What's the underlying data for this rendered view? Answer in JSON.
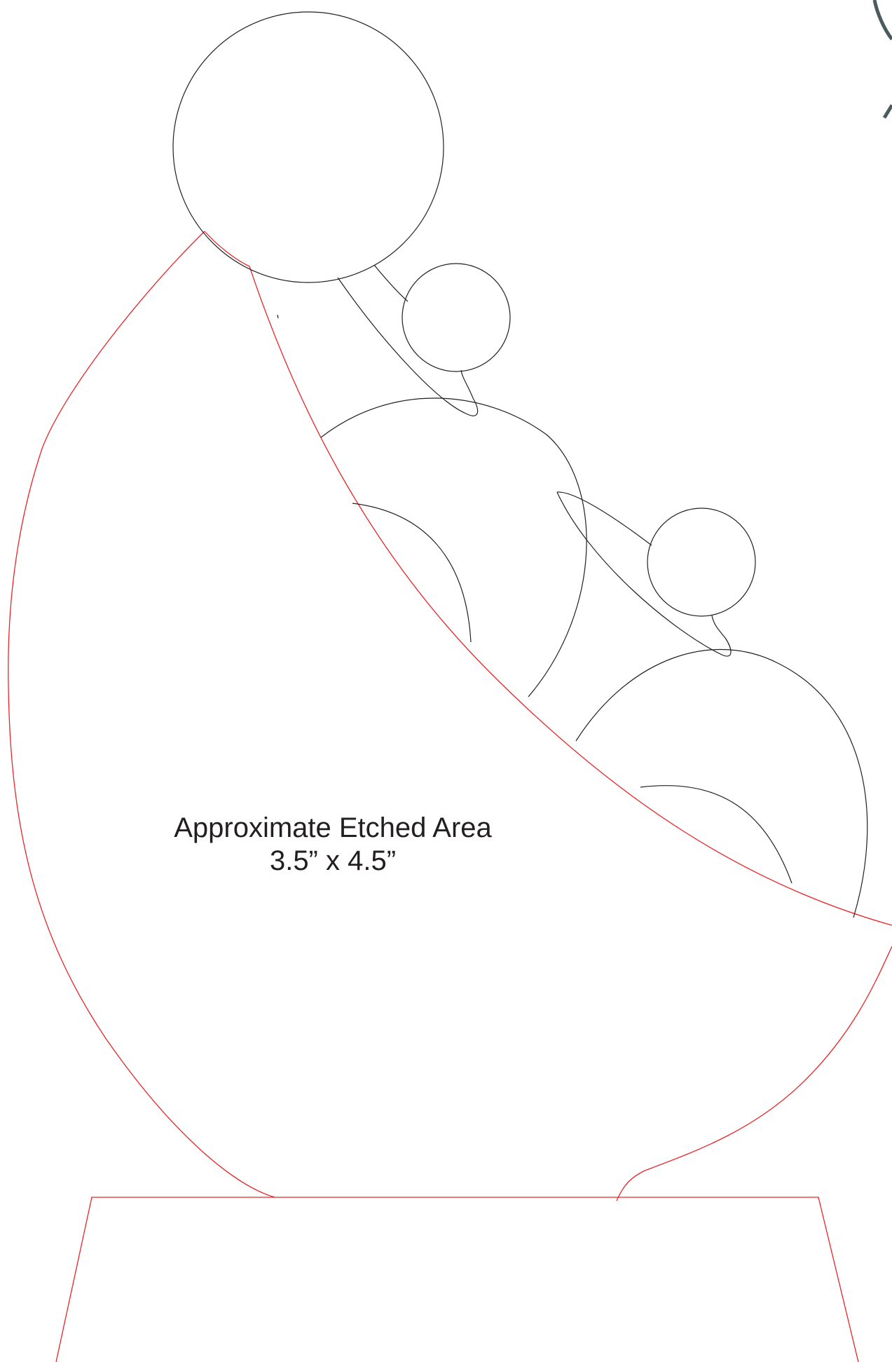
{
  "annotation": {
    "line1": "Approximate Etched Area",
    "line2": "3.5” x 4.5”"
  },
  "colors": {
    "cut_line": "#e8262a",
    "figure_line": "#231f20",
    "logo_line": "#4a5b5e"
  },
  "elements": {
    "trophy_outline": "red cut outline with base",
    "figure": "stylized figures of parent and children"
  }
}
